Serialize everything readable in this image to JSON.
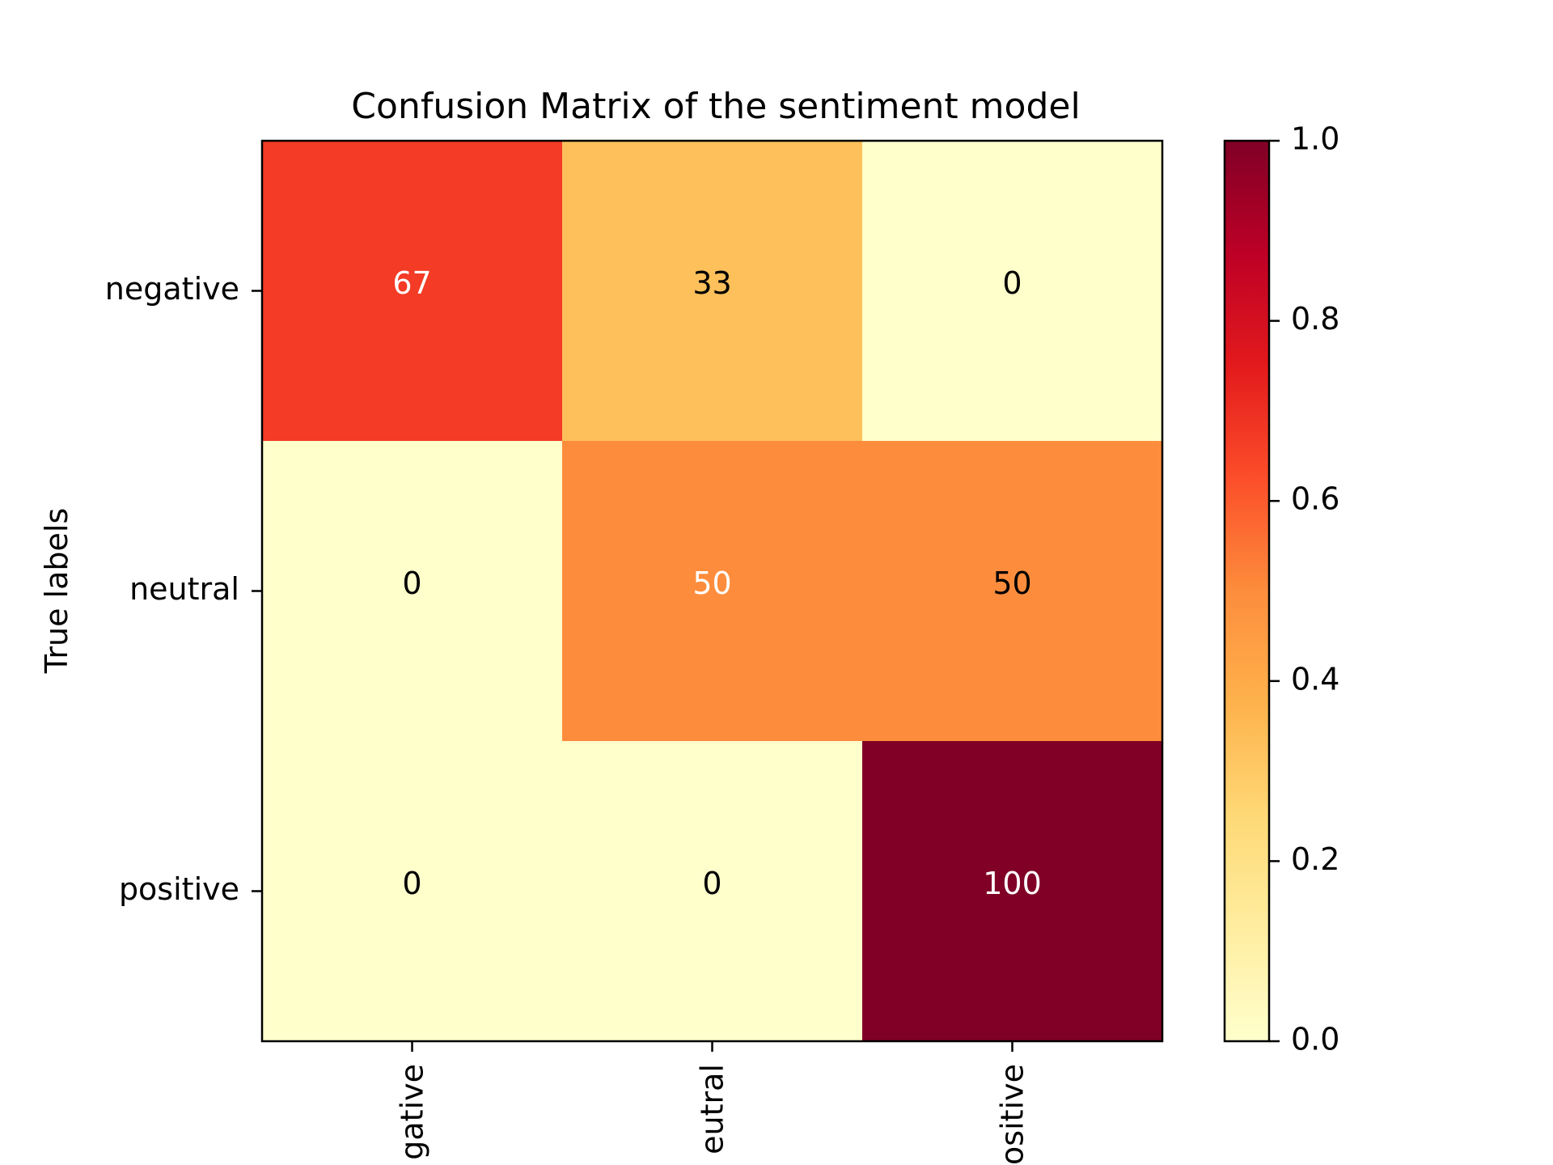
{
  "chart_data": {
    "type": "heatmap",
    "title": "Confusion Matrix of the sentiment model",
    "ylabel": "True labels",
    "xlabel": "",
    "rows": [
      "negative",
      "neutral",
      "positive"
    ],
    "columns": [
      "negative",
      "neutral",
      "positive"
    ],
    "x_tick_labels_visible": [
      "gative",
      "eutral",
      "ositive"
    ],
    "values": [
      [
        67,
        33,
        0
      ],
      [
        0,
        50,
        50
      ],
      [
        0,
        0,
        100
      ]
    ],
    "normalized": [
      [
        0.67,
        0.33,
        0.0
      ],
      [
        0.0,
        0.5,
        0.5
      ],
      [
        0.0,
        0.0,
        1.0
      ]
    ],
    "colormap": "YlOrRd",
    "colorbar": {
      "range": [
        0.0,
        1.0
      ],
      "ticks": [
        0.0,
        0.2,
        0.4,
        0.6,
        0.8,
        1.0
      ],
      "tick_labels": [
        "0.0",
        "0.2",
        "0.4",
        "0.6",
        "0.8",
        "1.0"
      ]
    },
    "grid": false,
    "colors": {
      "cell_0_0": "#f23c25",
      "cell_0_1": "#febe5b",
      "cell_1_1": "#fb8d3c",
      "cell_2_2": "#800026",
      "low": "#ffffcc"
    },
    "text_colors": [
      [
        "#ffffff",
        "#000000",
        "#000000"
      ],
      [
        "#000000",
        "#ffffff",
        "#000000"
      ],
      [
        "#000000",
        "#000000",
        "#ffffff"
      ]
    ]
  }
}
